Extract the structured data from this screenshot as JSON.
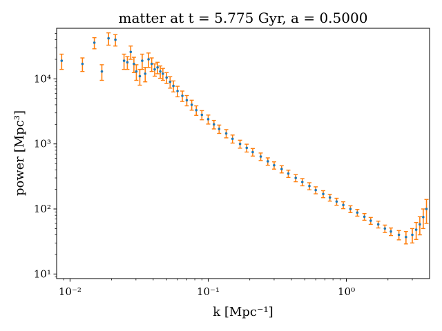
{
  "chart_data": {
    "type": "scatter",
    "title": "matter at t = 5.775 Gyr, a = 0.5000",
    "xlabel": "k [Mpc⁻¹]",
    "ylabel": "power [Mpc³]",
    "x_scale": "log",
    "y_scale": "log",
    "xlim": [
      0.008,
      4.0
    ],
    "ylim": [
      8.5,
      60000
    ],
    "x_ticks": [
      {
        "value": 0.01,
        "label": "10⁻²"
      },
      {
        "value": 0.1,
        "label": "10⁻¹"
      },
      {
        "value": 1,
        "label": "10⁰"
      }
    ],
    "y_ticks": [
      {
        "value": 10,
        "label": "10¹"
      },
      {
        "value": 100,
        "label": "10²"
      },
      {
        "value": 1000,
        "label": "10³"
      },
      {
        "value": 10000,
        "label": "10⁴"
      }
    ],
    "grid": false,
    "legend": "none",
    "colors": {
      "points": "#1f77b4",
      "errorbars": "#ff7f0e"
    },
    "series": [
      {
        "marker": "point",
        "errorbars": true,
        "x": [
          0.0087,
          0.0123,
          0.015,
          0.017,
          0.019,
          0.0213,
          0.0246,
          0.026,
          0.0275,
          0.029,
          0.0302,
          0.032,
          0.0333,
          0.035,
          0.037,
          0.039,
          0.041,
          0.043,
          0.045,
          0.047,
          0.05,
          0.053,
          0.056,
          0.06,
          0.065,
          0.07,
          0.076,
          0.082,
          0.09,
          0.1,
          0.11,
          0.12,
          0.135,
          0.15,
          0.17,
          0.19,
          0.21,
          0.24,
          0.27,
          0.3,
          0.34,
          0.38,
          0.43,
          0.48,
          0.54,
          0.6,
          0.68,
          0.76,
          0.85,
          0.95,
          1.07,
          1.2,
          1.35,
          1.5,
          1.7,
          1.9,
          2.1,
          2.4,
          2.7,
          3.0,
          3.2,
          3.4,
          3.6,
          3.8
        ],
        "y": [
          19000,
          17000,
          36000,
          13000,
          42000,
          40000,
          19000,
          18000,
          26000,
          17000,
          13000,
          11000,
          19000,
          12000,
          20000,
          17000,
          14000,
          15000,
          13000,
          12000,
          10500,
          9000,
          7800,
          6500,
          5500,
          4700,
          4000,
          3300,
          2800,
          2400,
          2000,
          1700,
          1450,
          1200,
          1000,
          870,
          750,
          640,
          540,
          470,
          410,
          350,
          300,
          260,
          225,
          195,
          170,
          150,
          130,
          115,
          100,
          88,
          76,
          66,
          58,
          50,
          45,
          40,
          37,
          40,
          48,
          58,
          75,
          100
        ],
        "err": [
          5000,
          4000,
          7000,
          3500,
          9000,
          8000,
          5000,
          4000,
          6000,
          4500,
          3500,
          3000,
          5000,
          3000,
          5000,
          4000,
          3000,
          3000,
          2800,
          2500,
          2000,
          1800,
          1500,
          1200,
          1000,
          850,
          700,
          550,
          450,
          380,
          300,
          250,
          210,
          170,
          140,
          120,
          100,
          85,
          70,
          60,
          52,
          45,
          38,
          33,
          28,
          24,
          21,
          18,
          16,
          14,
          12,
          10.5,
          9,
          8,
          7,
          6.5,
          6,
          6.5,
          8,
          10,
          14,
          18,
          25,
          40
        ]
      }
    ]
  }
}
